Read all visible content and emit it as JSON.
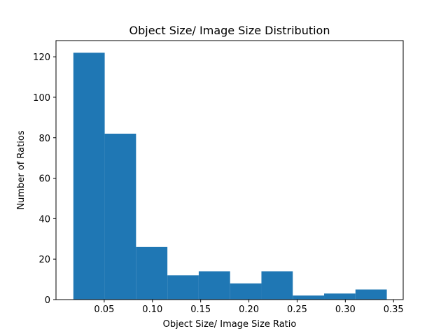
{
  "chart_data": {
    "type": "bar",
    "title": "Object Size/ Image Size Distribution",
    "xlabel": "Object Size/ Image Size Ratio",
    "ylabel": "Number of Ratios",
    "bin_edges": [
      0.018,
      0.0505,
      0.083,
      0.1155,
      0.148,
      0.1805,
      0.213,
      0.2455,
      0.278,
      0.3105,
      0.343
    ],
    "values": [
      122,
      82,
      26,
      12,
      14,
      8,
      14,
      2,
      3,
      5
    ],
    "xlim": [
      -0.0,
      0.36
    ],
    "ylim": [
      0,
      128
    ],
    "xticks": [
      0.05,
      0.1,
      0.15,
      0.2,
      0.25,
      0.3,
      0.35
    ],
    "xtick_labels": [
      "0.05",
      "0.10",
      "0.15",
      "0.20",
      "0.25",
      "0.30",
      "0.35"
    ],
    "yticks": [
      0,
      20,
      40,
      60,
      80,
      100,
      120
    ],
    "ytick_labels": [
      "0",
      "20",
      "40",
      "60",
      "80",
      "100",
      "120"
    ],
    "bar_color": "#1f77b4",
    "grid": false
  }
}
